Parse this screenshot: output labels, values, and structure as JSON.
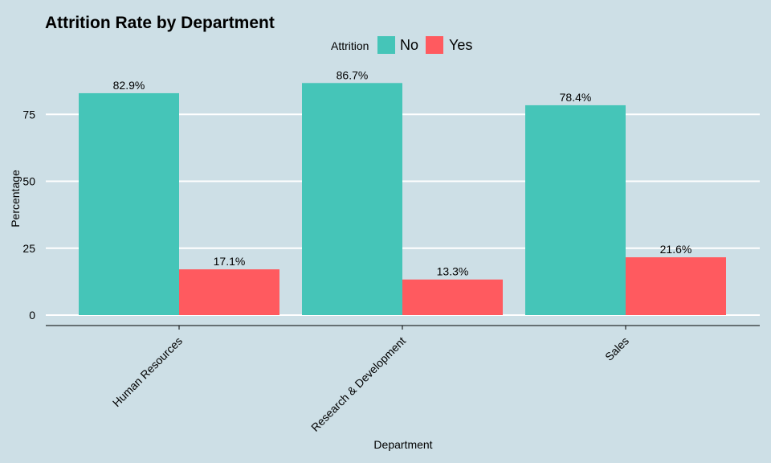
{
  "chart_data": {
    "type": "bar",
    "title": "Attrition Rate by Department",
    "xlabel": "Department",
    "ylabel": "Percentage",
    "categories": [
      "Human Resources",
      "Research & Development",
      "Sales"
    ],
    "series": [
      {
        "name": "No",
        "values": [
          82.9,
          86.7,
          78.4
        ],
        "labels": [
          "82.9%",
          "86.7%",
          "78.4%"
        ],
        "color": "#45c5b8"
      },
      {
        "name": "Yes",
        "values": [
          17.1,
          13.3,
          21.6
        ],
        "labels": [
          "17.1%",
          "13.3%",
          "21.6%"
        ],
        "color": "#ff5a5f"
      }
    ],
    "legend": {
      "title": "Attrition",
      "position": "top"
    },
    "y_ticks": [
      0,
      25,
      50,
      75
    ],
    "y_tick_labels": [
      "0",
      "25",
      "50",
      "75"
    ],
    "ylim": [
      0,
      87
    ],
    "grid": "horizontal-major",
    "x_tick_rotation": 45,
    "background": "#cddfe6",
    "gridline_color": "#ffffff"
  }
}
